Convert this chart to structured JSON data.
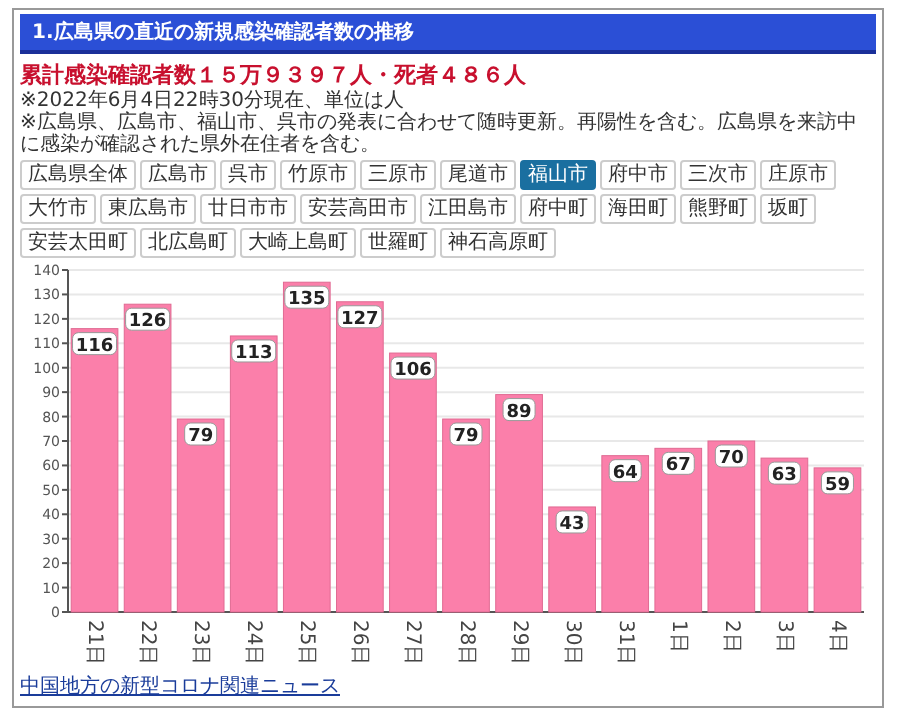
{
  "chart_data": {
    "type": "bar",
    "title": "1.広島県の直近の新規感染確認者数の推移",
    "subtitle": "累計感染確認者数１５万９３９７人・死者４８６人",
    "annotations": [
      "※2022年6月4日22時30分現在、単位は人",
      "※広島県、広島市、福山市、呉市の発表に合わせて随時更新。再陽性を含む。広島県を来訪中に感染が確認された県外在住者を含む。",
      "広島県全体",
      "広島市",
      "呉市",
      "竹原市",
      "三原市",
      "尾道市",
      "福山市",
      "府中市",
      "三次市",
      "庄原市",
      "大竹市",
      "東広島市",
      "廿日市市",
      "安芸高田市",
      "江田島市",
      "府中町",
      "海田町",
      "熊野町",
      "坂町",
      "安芸太田町",
      "北広島町",
      "大崎上島町",
      "世羅町",
      "神石高原町",
      "中国地方の新型コロナ関連ニュース"
    ],
    "categories": [
      "21日",
      "22日",
      "23日",
      "24日",
      "25日",
      "26日",
      "27日",
      "28日",
      "29日",
      "30日",
      "31日",
      "1日",
      "2日",
      "3日",
      "4日"
    ],
    "values": [
      116,
      126,
      79,
      113,
      135,
      127,
      106,
      79,
      89,
      43,
      64,
      67,
      70,
      63,
      59
    ],
    "color": "#fb7faa",
    "ylim": [
      0,
      140
    ],
    "yticks": [
      0,
      10,
      20,
      30,
      40,
      50,
      60,
      70,
      80,
      90,
      100,
      110,
      120,
      130,
      140
    ],
    "grid": "y",
    "data_labels": true
  }
}
